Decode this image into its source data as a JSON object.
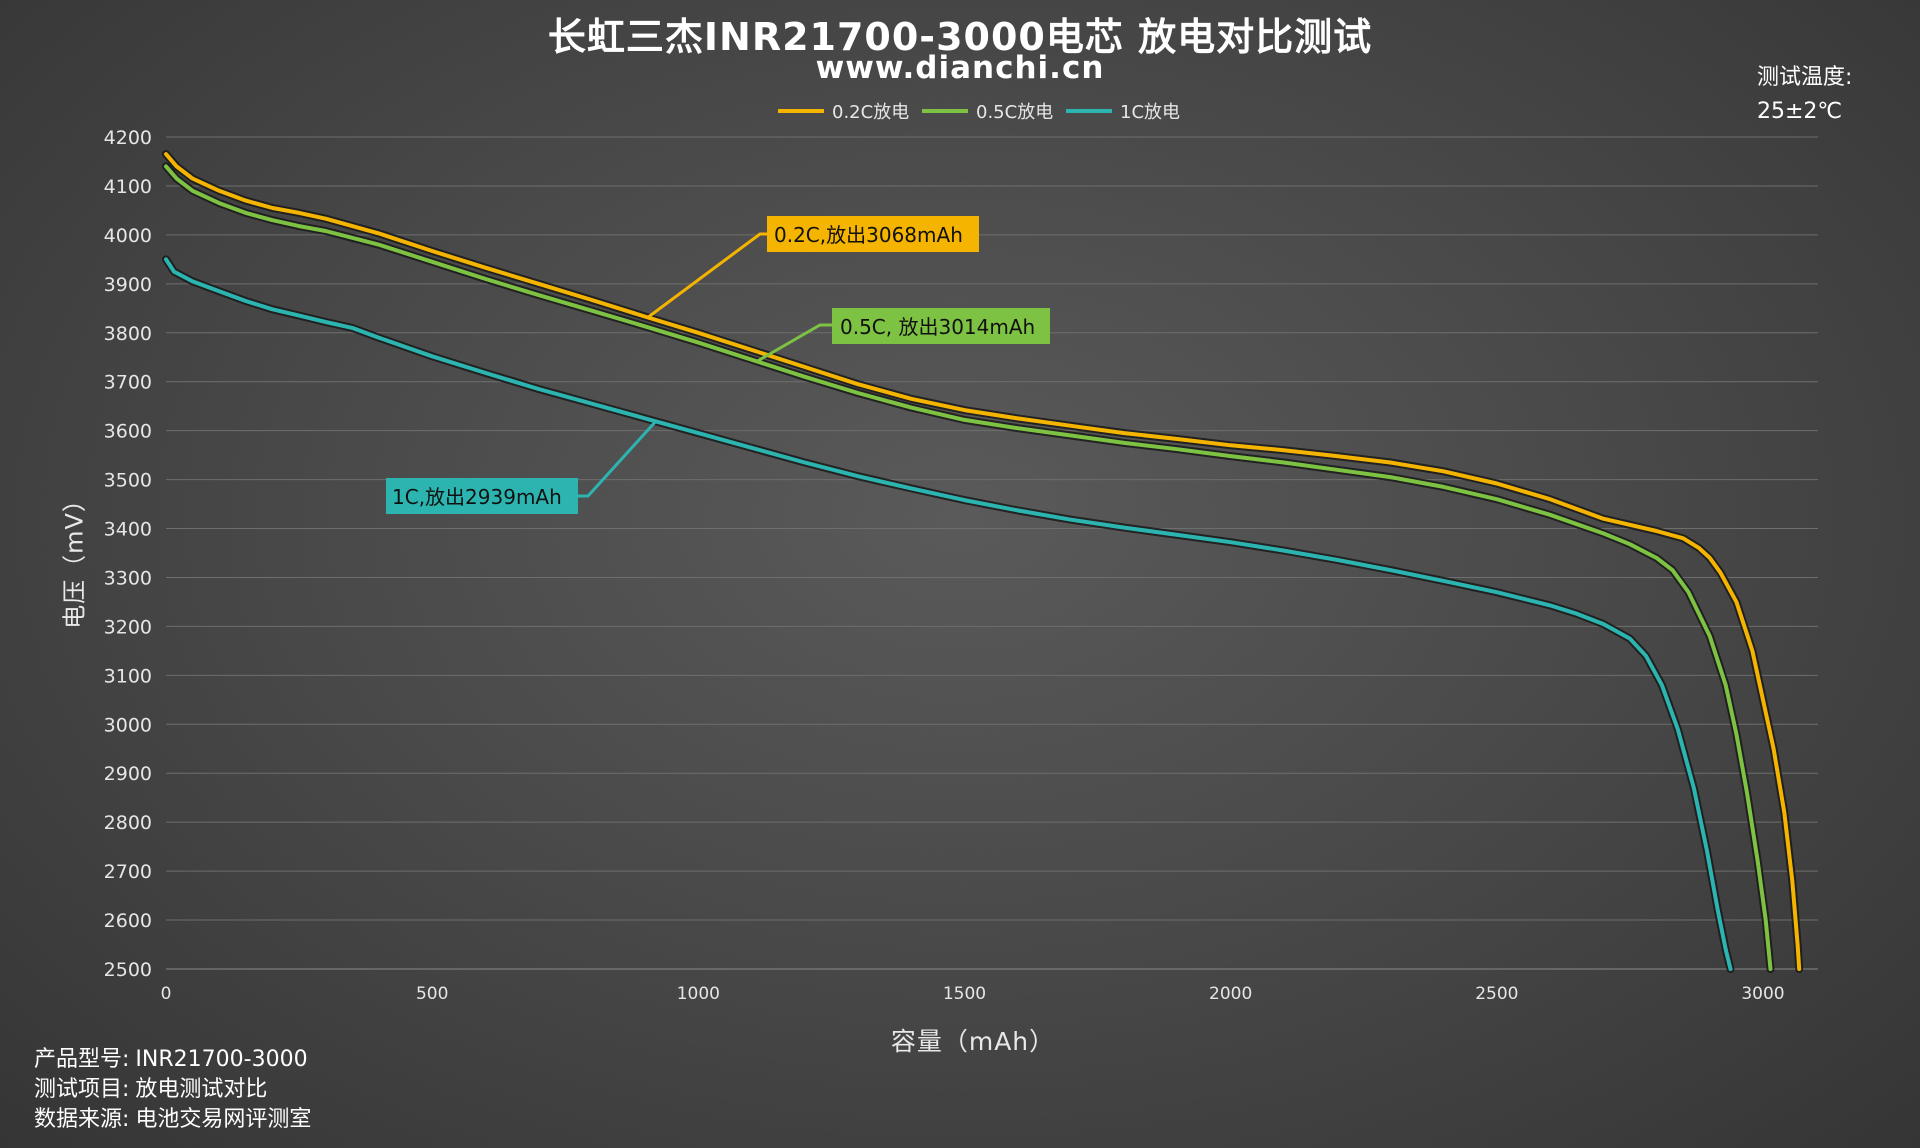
{
  "title": "长虹三杰INR21700-3000电芯 放电对比测试",
  "subtitle": "www.dianchi.cn",
  "temperature": {
    "label": "测试温度:",
    "value": "25±2℃"
  },
  "footer": [
    {
      "key": "产品型号:",
      "value": "INR21700-3000"
    },
    {
      "key": "测试项目:",
      "value": "放电测试对比"
    },
    {
      "key": "数据来源:",
      "value": "电池交易网评测室"
    }
  ],
  "chart_data": {
    "type": "line",
    "xlabel": "容量（mAh）",
    "ylabel": "电压（mV）",
    "xlim": [
      0,
      3100
    ],
    "ylim": [
      2500,
      4200
    ],
    "xticks": [
      0,
      500,
      1000,
      1500,
      2000,
      2500,
      3000
    ],
    "yticks": [
      2500,
      2600,
      2700,
      2800,
      2900,
      3000,
      3100,
      3200,
      3300,
      3400,
      3500,
      3600,
      3700,
      3800,
      3900,
      4000,
      4100,
      4200
    ],
    "grid": "horizontal",
    "legend_position": "top-center",
    "series": [
      {
        "name": "0.2C放电",
        "color": "#f5b400",
        "annotation": "0.2C,放出3068mAh",
        "points": [
          [
            0,
            4165
          ],
          [
            20,
            4140
          ],
          [
            50,
            4115
          ],
          [
            100,
            4090
          ],
          [
            150,
            4070
          ],
          [
            200,
            4055
          ],
          [
            250,
            4045
          ],
          [
            300,
            4033
          ],
          [
            400,
            4003
          ],
          [
            500,
            3967
          ],
          [
            600,
            3933
          ],
          [
            700,
            3900
          ],
          [
            800,
            3867
          ],
          [
            900,
            3833
          ],
          [
            1000,
            3800
          ],
          [
            1100,
            3765
          ],
          [
            1200,
            3730
          ],
          [
            1300,
            3695
          ],
          [
            1400,
            3665
          ],
          [
            1500,
            3642
          ],
          [
            1600,
            3625
          ],
          [
            1700,
            3610
          ],
          [
            1800,
            3595
          ],
          [
            1900,
            3583
          ],
          [
            2000,
            3570
          ],
          [
            2100,
            3560
          ],
          [
            2200,
            3548
          ],
          [
            2300,
            3535
          ],
          [
            2400,
            3517
          ],
          [
            2500,
            3492
          ],
          [
            2600,
            3460
          ],
          [
            2700,
            3420
          ],
          [
            2800,
            3395
          ],
          [
            2850,
            3380
          ],
          [
            2880,
            3360
          ],
          [
            2900,
            3340
          ],
          [
            2920,
            3310
          ],
          [
            2950,
            3250
          ],
          [
            2980,
            3150
          ],
          [
            3000,
            3050
          ],
          [
            3020,
            2950
          ],
          [
            3040,
            2820
          ],
          [
            3055,
            2680
          ],
          [
            3065,
            2550
          ],
          [
            3068,
            2500
          ]
        ]
      },
      {
        "name": "0.5C放电",
        "color": "#7dc242",
        "annotation": "0.5C, 放出3014mAh",
        "points": [
          [
            0,
            4140
          ],
          [
            20,
            4115
          ],
          [
            50,
            4090
          ],
          [
            100,
            4065
          ],
          [
            150,
            4045
          ],
          [
            200,
            4030
          ],
          [
            250,
            4018
          ],
          [
            300,
            4008
          ],
          [
            400,
            3980
          ],
          [
            500,
            3945
          ],
          [
            600,
            3910
          ],
          [
            700,
            3877
          ],
          [
            800,
            3845
          ],
          [
            900,
            3813
          ],
          [
            1000,
            3780
          ],
          [
            1100,
            3745
          ],
          [
            1200,
            3710
          ],
          [
            1300,
            3677
          ],
          [
            1400,
            3647
          ],
          [
            1500,
            3622
          ],
          [
            1600,
            3605
          ],
          [
            1700,
            3590
          ],
          [
            1800,
            3575
          ],
          [
            1900,
            3562
          ],
          [
            2000,
            3548
          ],
          [
            2100,
            3535
          ],
          [
            2200,
            3520
          ],
          [
            2300,
            3505
          ],
          [
            2400,
            3485
          ],
          [
            2500,
            3460
          ],
          [
            2600,
            3428
          ],
          [
            2700,
            3390
          ],
          [
            2750,
            3368
          ],
          [
            2800,
            3340
          ],
          [
            2830,
            3315
          ],
          [
            2860,
            3270
          ],
          [
            2900,
            3180
          ],
          [
            2930,
            3080
          ],
          [
            2950,
            2980
          ],
          [
            2970,
            2860
          ],
          [
            2990,
            2720
          ],
          [
            3005,
            2600
          ],
          [
            3014,
            2500
          ]
        ]
      },
      {
        "name": "1C放电",
        "color": "#2cb5b0",
        "annotation": "1C,放出2939mAh",
        "points": [
          [
            0,
            3950
          ],
          [
            15,
            3925
          ],
          [
            50,
            3905
          ],
          [
            100,
            3885
          ],
          [
            150,
            3865
          ],
          [
            200,
            3848
          ],
          [
            250,
            3835
          ],
          [
            300,
            3822
          ],
          [
            350,
            3810
          ],
          [
            400,
            3790
          ],
          [
            500,
            3752
          ],
          [
            600,
            3718
          ],
          [
            700,
            3685
          ],
          [
            800,
            3655
          ],
          [
            900,
            3625
          ],
          [
            1000,
            3595
          ],
          [
            1100,
            3565
          ],
          [
            1200,
            3535
          ],
          [
            1300,
            3507
          ],
          [
            1400,
            3482
          ],
          [
            1500,
            3458
          ],
          [
            1600,
            3437
          ],
          [
            1700,
            3418
          ],
          [
            1800,
            3402
          ],
          [
            1900,
            3387
          ],
          [
            2000,
            3372
          ],
          [
            2100,
            3355
          ],
          [
            2200,
            3336
          ],
          [
            2300,
            3315
          ],
          [
            2400,
            3293
          ],
          [
            2500,
            3270
          ],
          [
            2600,
            3243
          ],
          [
            2650,
            3226
          ],
          [
            2700,
            3205
          ],
          [
            2750,
            3175
          ],
          [
            2780,
            3140
          ],
          [
            2810,
            3080
          ],
          [
            2840,
            2990
          ],
          [
            2870,
            2870
          ],
          [
            2895,
            2740
          ],
          [
            2915,
            2620
          ],
          [
            2930,
            2540
          ],
          [
            2939,
            2500
          ]
        ]
      }
    ]
  }
}
